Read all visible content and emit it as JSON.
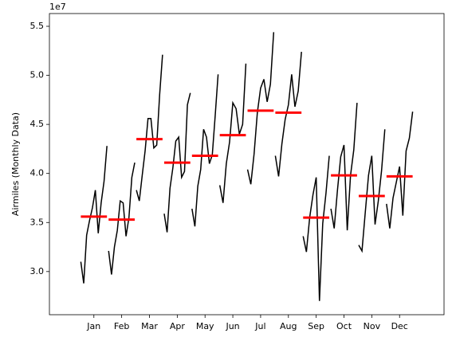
{
  "chart_data": {
    "type": "month_plot",
    "ylabel": "Airmiles (Monthly Data)",
    "y_offset_label": "1e7",
    "categories": [
      "Jan",
      "Feb",
      "Mar",
      "Apr",
      "May",
      "Jun",
      "Jul",
      "Aug",
      "Sep",
      "Oct",
      "Nov",
      "Dec"
    ],
    "values": [
      [
        3.1,
        2.88,
        3.37,
        3.52,
        3.65,
        3.83,
        3.39,
        3.7,
        3.92,
        4.28
      ],
      [
        3.21,
        2.97,
        3.25,
        3.42,
        3.72,
        3.7,
        3.36,
        3.55,
        3.96,
        4.11
      ],
      [
        3.83,
        3.72,
        3.98,
        4.23,
        4.56,
        4.56,
        4.26,
        4.29,
        4.8,
        5.21
      ],
      [
        3.59,
        3.4,
        3.85,
        4.06,
        4.33,
        4.37,
        3.96,
        4.02,
        4.7,
        4.82
      ],
      [
        3.64,
        3.46,
        3.87,
        4.04,
        4.45,
        4.37,
        4.1,
        4.19,
        4.59,
        5.01
      ],
      [
        3.88,
        3.7,
        4.1,
        4.32,
        4.72,
        4.66,
        4.4,
        4.5,
        5.12
      ],
      [
        4.04,
        3.89,
        4.2,
        4.62,
        4.87,
        4.96,
        4.73,
        4.91,
        5.44
      ],
      [
        4.18,
        3.97,
        4.3,
        4.55,
        4.7,
        5.01,
        4.68,
        4.84,
        5.24
      ],
      [
        3.36,
        3.2,
        3.55,
        3.78,
        3.96,
        2.7,
        3.49,
        3.8,
        4.18
      ],
      [
        3.64,
        3.44,
        3.83,
        4.17,
        4.29,
        3.42,
        3.98,
        4.24,
        4.72
      ],
      [
        3.27,
        3.21,
        3.6,
        3.98,
        4.18,
        3.48,
        3.72,
        4.03,
        4.45
      ],
      [
        3.69,
        3.44,
        3.75,
        3.91,
        4.07,
        3.57,
        4.23,
        4.36,
        4.63
      ]
    ],
    "means": [
      3.56,
      3.53,
      4.35,
      4.11,
      4.18,
      4.39,
      4.64,
      4.62,
      3.55,
      3.98,
      3.77,
      3.97
    ],
    "color": "#000000",
    "mean_color": "#ff0000",
    "xlim": [
      -1.6,
      12.6
    ],
    "ylim": [
      2.56,
      5.63
    ],
    "yticks": [
      {
        "value": 3,
        "label": "3.0"
      },
      {
        "value": 3.5,
        "label": "3.5"
      },
      {
        "value": 4,
        "label": "4.0"
      },
      {
        "value": 4.5,
        "label": "4.5"
      },
      {
        "value": 5,
        "label": "5.0"
      },
      {
        "value": 5.5,
        "label": "5.5"
      }
    ]
  }
}
